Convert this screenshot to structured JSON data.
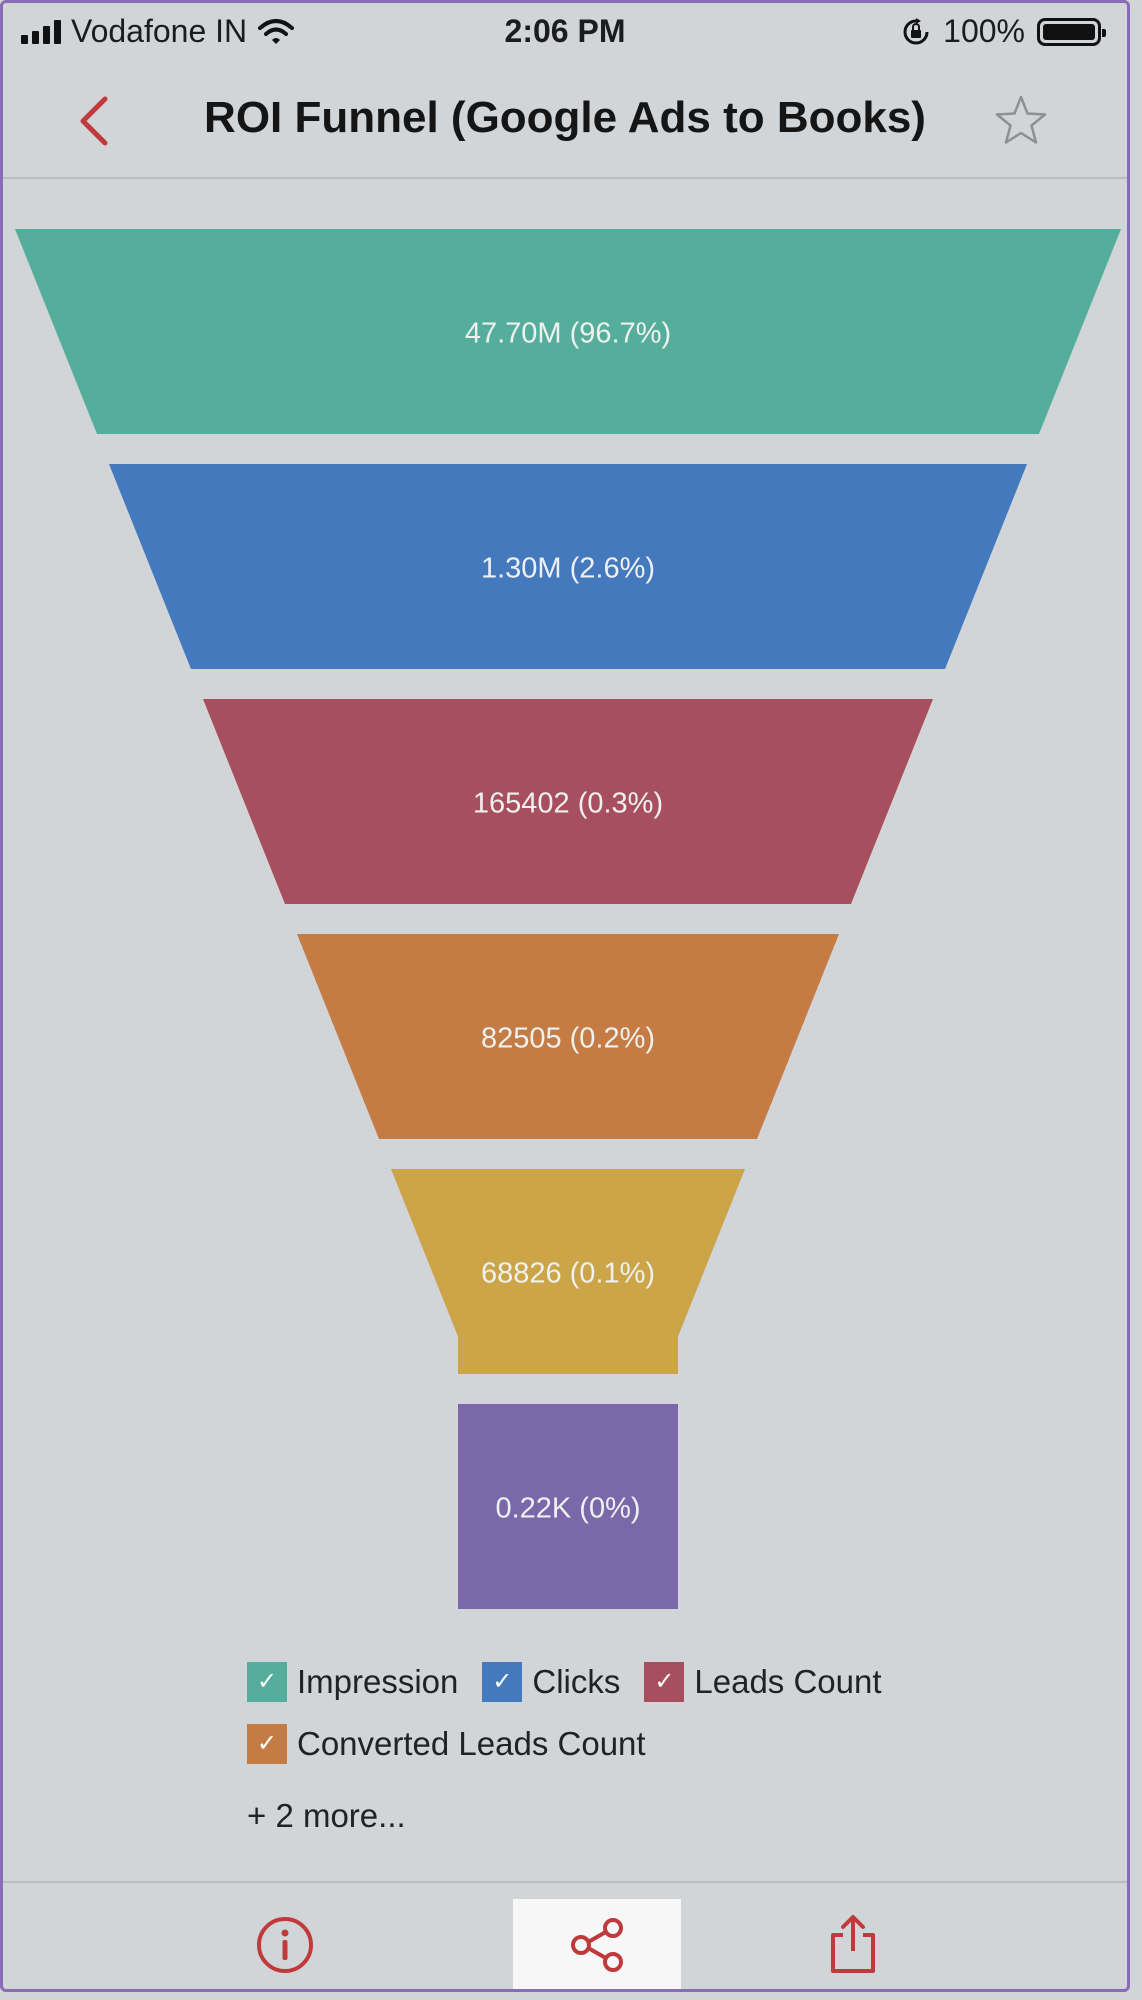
{
  "status_bar": {
    "carrier": "Vodafone IN",
    "time": "2:06 PM",
    "battery": "100%"
  },
  "nav": {
    "title": "ROI Funnel (Google Ads to Books)",
    "back_icon": "chevron-left-icon",
    "favorite_icon": "star-icon"
  },
  "colors": {
    "accent": "#c0393b",
    "impression": "#55ae9c",
    "clicks": "#4479bd",
    "leads": "#a84f5f",
    "converted": "#c47c44",
    "stage5": "#cca548",
    "stage6": "#7a68ab"
  },
  "chart_data": {
    "type": "funnel",
    "stages": [
      {
        "name": "Impression",
        "label": "47.70M (96.7%)",
        "color": "#55ae9c"
      },
      {
        "name": "Clicks",
        "label": "1.30M (2.6%)",
        "color": "#4479bd"
      },
      {
        "name": "Leads Count",
        "label": "165402 (0.3%)",
        "color": "#a84f5f"
      },
      {
        "name": "Converted Leads Count",
        "label": "82505 (0.2%)",
        "color": "#c47c44"
      },
      {
        "name": "",
        "label": "68826 (0.1%)",
        "color": "#cca548"
      },
      {
        "name": "",
        "label": "0.22K (0%)",
        "color": "#7a68ab"
      }
    ],
    "values": [
      47700000,
      1300000,
      165402,
      82505,
      68826,
      220
    ],
    "percentages": [
      96.7,
      2.6,
      0.3,
      0.2,
      0.1,
      0
    ],
    "legend_position": "bottom"
  },
  "legend": {
    "check_glyph": "✓",
    "items": [
      {
        "label": "Impression",
        "color": "#55ae9c"
      },
      {
        "label": "Clicks",
        "color": "#4479bd"
      },
      {
        "label": "Leads Count",
        "color": "#a84f5f"
      },
      {
        "label": "Converted Leads Count",
        "color": "#c47c44"
      }
    ],
    "more": "+ 2 more..."
  },
  "toolbar": {
    "items": [
      {
        "icon": "info-icon"
      },
      {
        "icon": "share-network-icon",
        "active": true
      },
      {
        "icon": "export-icon"
      }
    ]
  }
}
